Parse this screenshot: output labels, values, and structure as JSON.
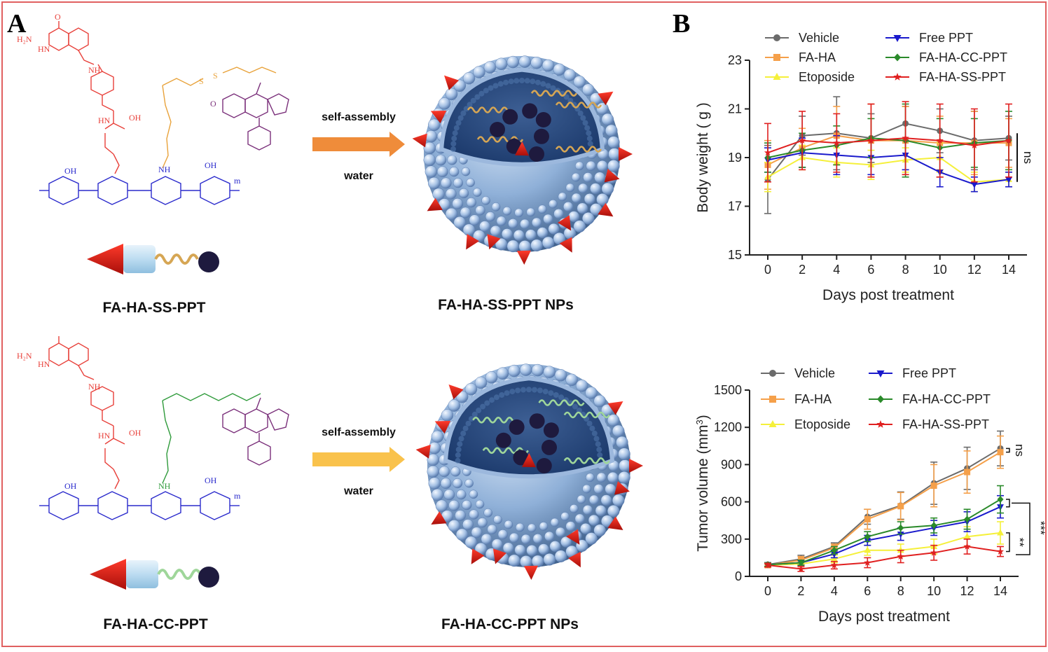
{
  "panels": {
    "a_letter": "A",
    "b_letter": "B"
  },
  "panel_a": {
    "rows": [
      {
        "conjugate_label": "FA-HA-SS-PPT",
        "np_label": "FA-HA-SS-PPT NPs",
        "arrow_top": "self-assembly",
        "arrow_bottom": "water",
        "linker_color": "#e8a23a",
        "arrow_color": "#ef8c3a",
        "spring_color": "#d6a654"
      },
      {
        "conjugate_label": "FA-HA-CC-PPT",
        "np_label": "FA-HA-CC-PPT NPs",
        "arrow_top": "self-assembly",
        "arrow_bottom": "water",
        "linker_color": "#2e9a3a",
        "arrow_color": "#f9c24c",
        "spring_color": "#9fd69a"
      }
    ],
    "chem_labels": {
      "amine": "H₂N",
      "hn": "HN",
      "nh": "NH",
      "oh": "OH",
      "o": "O",
      "m": "m"
    }
  },
  "colors": {
    "Vehicle": "#6b6b6b",
    "FA-HA": "#f5a04a",
    "Etoposide": "#f5f03a",
    "Free PPT": "#1a1acc",
    "FA-HA-CC-PPT": "#2a8a2a",
    "FA-HA-SS-PPT": "#e02020",
    "border": "#e06060"
  },
  "chart_data": [
    {
      "type": "line",
      "title": "",
      "xlabel": "Days post treatment",
      "ylabel": "Body weight ( g )",
      "ylim": [
        15,
        23
      ],
      "yticks": [
        "15",
        "17",
        "19",
        "21",
        "23"
      ],
      "xticks": [
        "0",
        "2",
        "4",
        "6",
        "8",
        "10",
        "12",
        "14"
      ],
      "x": [
        0,
        2,
        4,
        6,
        8,
        10,
        12,
        14
      ],
      "legend_position": "top",
      "annotation": "ns",
      "series": [
        {
          "name": "Vehicle",
          "marker": "circle",
          "values": [
            18.1,
            19.9,
            20.0,
            19.8,
            20.4,
            20.1,
            19.7,
            19.8
          ],
          "err": [
            1.4,
            0.8,
            1.5,
            1.0,
            0.7,
            0.9,
            1.2,
            0.9
          ]
        },
        {
          "name": "FA-HA",
          "marker": "square",
          "values": [
            18.7,
            19.4,
            19.9,
            19.7,
            19.7,
            19.6,
            19.6,
            19.6
          ],
          "err": [
            1.0,
            0.8,
            1.2,
            1.5,
            1.4,
            1.1,
            1.3,
            1.0
          ]
        },
        {
          "name": "Etoposide",
          "marker": "triangle-up",
          "values": [
            18.2,
            19.0,
            18.8,
            18.7,
            18.9,
            19.0,
            18.0,
            18.1
          ],
          "err": [
            0.6,
            0.5,
            0.6,
            0.6,
            0.5,
            0.6,
            0.4,
            0.3
          ]
        },
        {
          "name": "Free PPT",
          "marker": "triangle-down",
          "values": [
            18.9,
            19.2,
            19.1,
            19.0,
            19.1,
            18.4,
            17.9,
            18.1
          ],
          "err": [
            0.5,
            0.6,
            0.8,
            0.7,
            0.6,
            0.6,
            0.3,
            0.3
          ]
        },
        {
          "name": "FA-HA-CC-PPT",
          "marker": "diamond",
          "values": [
            19.0,
            19.3,
            19.5,
            19.8,
            19.7,
            19.4,
            19.6,
            19.7
          ],
          "err": [
            0.6,
            0.7,
            0.8,
            0.8,
            1.5,
            1.2,
            1.0,
            1.2
          ]
        },
        {
          "name": "FA-HA-SS-PPT",
          "marker": "star",
          "values": [
            19.2,
            19.7,
            19.6,
            19.7,
            19.8,
            19.7,
            19.5,
            19.7
          ],
          "err": [
            1.2,
            1.2,
            1.2,
            1.5,
            1.5,
            1.5,
            1.5,
            1.5
          ]
        }
      ]
    },
    {
      "type": "line",
      "title": "",
      "xlabel": "Days post treatment",
      "ylabel": "Tumor volume (mm",
      "ylabel_sup": "3",
      "ylabel_close": ")",
      "ylim": [
        0,
        1500
      ],
      "yticks": [
        "0",
        "300",
        "600",
        "900",
        "1200",
        "1500"
      ],
      "xticks": [
        "0",
        "2",
        "4",
        "6",
        "8",
        "10",
        "12",
        "14"
      ],
      "x": [
        0,
        2,
        4,
        6,
        8,
        10,
        12,
        14
      ],
      "legend_position": "top",
      "annotations": [
        "ns",
        "**",
        "***"
      ],
      "series": [
        {
          "name": "Vehicle",
          "marker": "circle",
          "values": [
            95,
            140,
            240,
            480,
            570,
            750,
            870,
            1030
          ],
          "err": [
            15,
            30,
            30,
            60,
            110,
            170,
            170,
            140
          ]
        },
        {
          "name": "FA-HA",
          "marker": "square",
          "values": [
            90,
            130,
            230,
            460,
            565,
            730,
            840,
            1000
          ],
          "err": [
            15,
            30,
            30,
            80,
            110,
            170,
            170,
            130
          ]
        },
        {
          "name": "Etoposide",
          "marker": "triangle-up",
          "values": [
            90,
            100,
            140,
            210,
            210,
            240,
            320,
            350
          ],
          "err": [
            15,
            20,
            30,
            40,
            50,
            60,
            80,
            90
          ]
        },
        {
          "name": "Free PPT",
          "marker": "triangle-down",
          "values": [
            95,
            110,
            180,
            290,
            340,
            390,
            440,
            560
          ],
          "err": [
            15,
            20,
            30,
            40,
            50,
            60,
            80,
            90
          ]
        },
        {
          "name": "FA-HA-CC-PPT",
          "marker": "diamond",
          "values": [
            95,
            110,
            210,
            320,
            390,
            410,
            460,
            620
          ],
          "err": [
            15,
            20,
            30,
            40,
            50,
            60,
            80,
            110
          ]
        },
        {
          "name": "FA-HA-SS-PPT",
          "marker": "star",
          "values": [
            90,
            60,
            90,
            110,
            160,
            190,
            240,
            200
          ],
          "err": [
            15,
            20,
            30,
            40,
            50,
            60,
            60,
            40
          ]
        }
      ]
    }
  ]
}
